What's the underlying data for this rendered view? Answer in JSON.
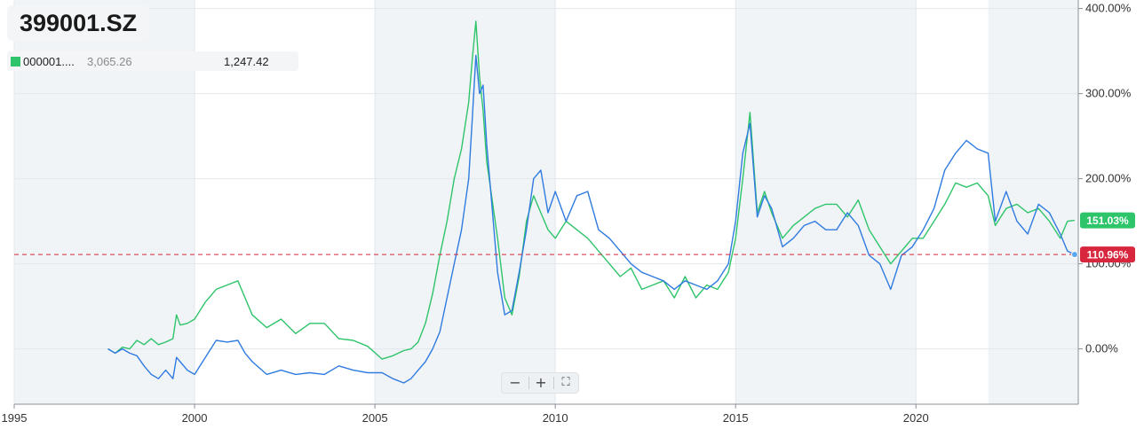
{
  "ticker": "399001.SZ",
  "legend": {
    "name": "000001....",
    "value_grey": "3,065.26",
    "value_main": "1,247.42",
    "color": "#2ec46a"
  },
  "controls": {
    "zoom_out": "−",
    "zoom_in": "+",
    "fullscreen": "⛶"
  },
  "chart_data": {
    "type": "line",
    "x_range": [
      1995,
      2024.5
    ],
    "y_range_percent": [
      -65,
      410
    ],
    "x_ticks": [
      {
        "x": 1995,
        "label": "1995"
      },
      {
        "x": 2000,
        "label": "2000"
      },
      {
        "x": 2005,
        "label": "2005"
      },
      {
        "x": 2010,
        "label": "2010"
      },
      {
        "x": 2015,
        "label": "2015"
      },
      {
        "x": 2020,
        "label": "2020"
      }
    ],
    "y_ticks": [
      {
        "y": 0,
        "label": "0.00%"
      },
      {
        "y": 100,
        "label": "100.00%"
      },
      {
        "y": 200,
        "label": "200.00%"
      },
      {
        "y": 300,
        "label": "300.00%"
      },
      {
        "y": 400,
        "label": "400.00%"
      }
    ],
    "shaded_bands": [
      [
        1995,
        2000
      ],
      [
        2005,
        2010
      ],
      [
        2015,
        2020
      ],
      [
        2022,
        2024.5
      ]
    ],
    "reference_line": {
      "y": 110.96,
      "label": "110.96%",
      "color": "#d7263d"
    },
    "end_labels": [
      {
        "y": 151.03,
        "label": "151.03%",
        "color": "#2ec46a"
      }
    ],
    "series": [
      {
        "color": "#2ec46a",
        "x": [
          1997.6,
          1997.8,
          1998.0,
          1998.2,
          1998.4,
          1998.6,
          1998.8,
          1999.0,
          1999.2,
          1999.4,
          1999.5,
          1999.6,
          1999.8,
          2000.0,
          2000.3,
          2000.6,
          2000.9,
          2001.2,
          2001.4,
          2001.6,
          2002.0,
          2002.4,
          2002.8,
          2003.2,
          2003.6,
          2004.0,
          2004.4,
          2004.8,
          2005.2,
          2005.5,
          2005.8,
          2006.0,
          2006.2,
          2006.4,
          2006.6,
          2006.8,
          2007.0,
          2007.2,
          2007.4,
          2007.6,
          2007.7,
          2007.8,
          2007.9,
          2008.0,
          2008.1,
          2008.2,
          2008.4,
          2008.6,
          2008.8,
          2009.0,
          2009.2,
          2009.4,
          2009.6,
          2009.8,
          2010.0,
          2010.3,
          2010.6,
          2010.9,
          2011.2,
          2011.5,
          2011.8,
          2012.1,
          2012.4,
          2012.7,
          2013.0,
          2013.3,
          2013.6,
          2013.9,
          2014.2,
          2014.5,
          2014.8,
          2015.0,
          2015.2,
          2015.4,
          2015.6,
          2015.8,
          2016.0,
          2016.3,
          2016.6,
          2016.9,
          2017.2,
          2017.5,
          2017.8,
          2018.1,
          2018.4,
          2018.7,
          2019.0,
          2019.3,
          2019.6,
          2019.9,
          2020.2,
          2020.5,
          2020.8,
          2021.1,
          2021.4,
          2021.7,
          2022.0,
          2022.2,
          2022.5,
          2022.8,
          2023.1,
          2023.4,
          2023.7,
          2024.0,
          2024.2,
          2024.4
        ],
        "values": [
          0,
          -5,
          2,
          0,
          10,
          5,
          12,
          5,
          8,
          12,
          40,
          28,
          30,
          35,
          55,
          70,
          75,
          80,
          60,
          40,
          25,
          35,
          18,
          30,
          30,
          12,
          10,
          3,
          -12,
          -8,
          -2,
          0,
          8,
          30,
          65,
          110,
          150,
          200,
          235,
          290,
          340,
          385,
          320,
          280,
          220,
          190,
          130,
          60,
          40,
          85,
          150,
          180,
          160,
          140,
          130,
          150,
          140,
          130,
          115,
          100,
          85,
          95,
          70,
          75,
          80,
          60,
          85,
          60,
          75,
          70,
          90,
          130,
          200,
          278,
          160,
          185,
          160,
          130,
          145,
          155,
          165,
          170,
          170,
          155,
          175,
          140,
          120,
          100,
          115,
          130,
          130,
          150,
          170,
          195,
          190,
          195,
          180,
          145,
          165,
          170,
          160,
          165,
          150,
          130,
          150,
          151
        ]
      },
      {
        "color": "#2f7be0",
        "x": [
          1997.6,
          1997.8,
          1998.0,
          1998.2,
          1998.4,
          1998.6,
          1998.8,
          1999.0,
          1999.2,
          1999.4,
          1999.5,
          1999.6,
          1999.8,
          2000.0,
          2000.3,
          2000.6,
          2000.9,
          2001.2,
          2001.4,
          2001.6,
          2002.0,
          2002.4,
          2002.8,
          2003.2,
          2003.6,
          2004.0,
          2004.4,
          2004.8,
          2005.2,
          2005.5,
          2005.8,
          2006.0,
          2006.2,
          2006.4,
          2006.6,
          2006.8,
          2007.0,
          2007.2,
          2007.4,
          2007.6,
          2007.7,
          2007.8,
          2007.9,
          2008.0,
          2008.1,
          2008.2,
          2008.4,
          2008.6,
          2008.8,
          2009.0,
          2009.2,
          2009.4,
          2009.6,
          2009.8,
          2010.0,
          2010.3,
          2010.6,
          2010.9,
          2011.2,
          2011.5,
          2011.8,
          2012.1,
          2012.4,
          2012.7,
          2013.0,
          2013.3,
          2013.6,
          2013.9,
          2014.2,
          2014.5,
          2014.8,
          2015.0,
          2015.2,
          2015.4,
          2015.6,
          2015.8,
          2016.0,
          2016.3,
          2016.6,
          2016.9,
          2017.2,
          2017.5,
          2017.8,
          2018.1,
          2018.4,
          2018.7,
          2019.0,
          2019.3,
          2019.6,
          2019.9,
          2020.2,
          2020.5,
          2020.8,
          2021.1,
          2021.4,
          2021.7,
          2022.0,
          2022.2,
          2022.5,
          2022.8,
          2023.1,
          2023.4,
          2023.7,
          2024.0,
          2024.2,
          2024.4
        ],
        "values": [
          0,
          -5,
          0,
          -5,
          -8,
          -20,
          -30,
          -35,
          -25,
          -35,
          -10,
          -15,
          -25,
          -30,
          -10,
          10,
          8,
          10,
          -5,
          -15,
          -30,
          -25,
          -30,
          -28,
          -30,
          -20,
          -25,
          -28,
          -28,
          -35,
          -40,
          -35,
          -25,
          -15,
          0,
          20,
          60,
          100,
          140,
          200,
          270,
          345,
          300,
          310,
          240,
          190,
          90,
          40,
          45,
          90,
          140,
          200,
          210,
          160,
          185,
          150,
          180,
          185,
          140,
          130,
          115,
          100,
          90,
          85,
          80,
          70,
          80,
          75,
          70,
          80,
          100,
          150,
          230,
          265,
          155,
          180,
          165,
          120,
          130,
          145,
          150,
          140,
          140,
          160,
          145,
          110,
          100,
          70,
          110,
          120,
          140,
          165,
          210,
          230,
          245,
          235,
          230,
          150,
          185,
          150,
          135,
          170,
          160,
          135,
          115,
          110.96
        ]
      }
    ]
  }
}
